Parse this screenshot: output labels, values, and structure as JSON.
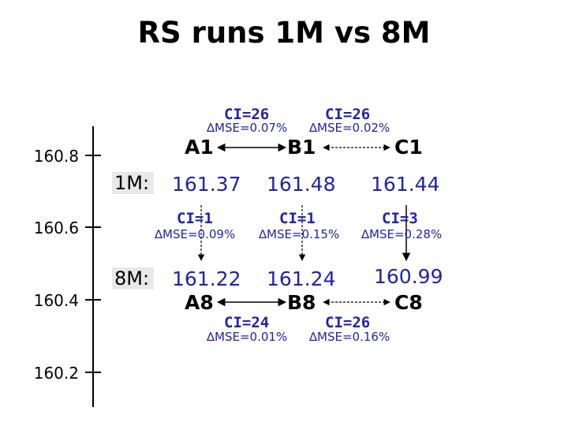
{
  "title": "RS runs 1M vs 8M",
  "axis_ticks": [
    "160.8",
    "160.6",
    "160.4",
    "160.2"
  ],
  "runs": {
    "m1": "1M:",
    "m8": "8M:"
  },
  "nodes": {
    "A1": "A1",
    "B1": "B1",
    "C1": "C1",
    "A8": "A8",
    "B8": "B8",
    "C8": "C8"
  },
  "values": {
    "A1": "161.37",
    "B1": "161.48",
    "C1": "161.44",
    "A8": "161.22",
    "B8": "161.24",
    "C8": "160.99"
  },
  "links": {
    "A1_B1": {
      "ci": "CI=26",
      "mse": "MSE=0.07%"
    },
    "B1_C1": {
      "ci": "CI=26",
      "mse": "MSE=0.02%"
    },
    "A1_A8": {
      "ci": "CI=1",
      "mse": "MSE=0.09%"
    },
    "B1_B8": {
      "ci": "CI=1",
      "mse": "MSE=0.15%"
    },
    "C1_C8": {
      "ci": "CI=3",
      "mse": "MSE=0.28%"
    },
    "A8_B8": {
      "ci": "CI=24",
      "mse": "MSE=0.01%"
    },
    "B8_C8": {
      "ci": "CI=26",
      "mse": "MSE=0.16%"
    }
  },
  "delta_symbol": "∆",
  "colors": {
    "text_blue": "#2222aa",
    "line": "#000000",
    "run_label_bg": "#e8e8e8"
  }
}
